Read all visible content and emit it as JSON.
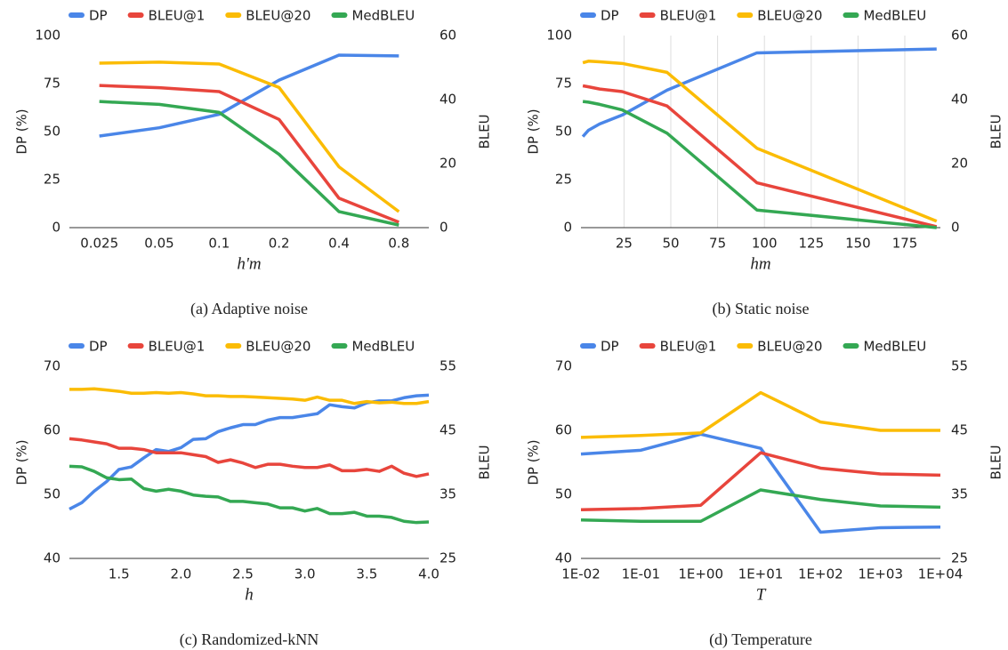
{
  "chart_data": [
    {
      "type": "line",
      "caption": "(a) Adaptive noise",
      "x_label": "h'm",
      "y_label": "DP (%)",
      "y2_label": "BLEU",
      "categories": [
        "0.025",
        "0.05",
        "0.1",
        "0.2",
        "0.4",
        "0.8"
      ],
      "ylim": [
        0,
        100
      ],
      "yticks": [
        0,
        25,
        50,
        75,
        100
      ],
      "y2lim": [
        0,
        60
      ],
      "y2ticks": [
        0,
        20,
        40,
        60
      ],
      "legend": "top",
      "series": [
        {
          "name": "DP",
          "color": "#4a86e8",
          "axis": "y",
          "values": [
            47.7,
            52,
            59,
            76.8,
            89.8,
            89.4
          ]
        },
        {
          "name": "BLEU@1",
          "color": "#e8453c",
          "axis": "y2",
          "values": [
            44.4,
            43.7,
            42.5,
            33.8,
            9.2,
            1.7
          ]
        },
        {
          "name": "BLEU@20",
          "color": "#fbbc04",
          "axis": "y2",
          "values": [
            51.4,
            51.7,
            51.1,
            43.8,
            19,
            5
          ]
        },
        {
          "name": "MedBLEU",
          "color": "#34a853",
          "axis": "y2",
          "values": [
            39.4,
            38.5,
            36,
            22.9,
            5,
            0.8
          ]
        }
      ]
    },
    {
      "type": "line",
      "caption": "(b) Static noise",
      "x_label": "hm",
      "y_label": "DP (%)",
      "y2_label": "BLEU",
      "x": [
        3,
        6,
        12,
        24,
        48,
        96,
        192
      ],
      "xlim": [
        2,
        194
      ],
      "xticks": [
        25,
        50,
        75,
        100,
        125,
        150,
        175
      ],
      "xgrid": true,
      "ylim": [
        0,
        100
      ],
      "yticks": [
        0,
        25,
        50,
        75,
        100
      ],
      "y2lim": [
        0,
        60
      ],
      "y2ticks": [
        0,
        20,
        40,
        60
      ],
      "legend": "top",
      "series": [
        {
          "name": "DP",
          "color": "#4a86e8",
          "axis": "y",
          "values": [
            47.4,
            50.7,
            54,
            58.6,
            71.6,
            91,
            93
          ]
        },
        {
          "name": "BLEU@1",
          "color": "#e8453c",
          "axis": "y2",
          "values": [
            44.3,
            44,
            43.3,
            42.5,
            38,
            14,
            0.3
          ]
        },
        {
          "name": "BLEU@20",
          "color": "#fbbc04",
          "axis": "y2",
          "values": [
            51.5,
            52,
            51.8,
            51.3,
            48.5,
            24.8,
            2
          ]
        },
        {
          "name": "MedBLEU",
          "color": "#34a853",
          "axis": "y2",
          "values": [
            39.4,
            39.2,
            38.5,
            36.8,
            29.5,
            5.5,
            0
          ]
        }
      ]
    },
    {
      "type": "line",
      "caption": "(c) Randomized-kNN",
      "x_label": "h",
      "y_label": "DP (%)",
      "y2_label": "BLEU",
      "x": [
        1.1,
        1.2,
        1.3,
        1.4,
        1.5,
        1.6,
        1.7,
        1.8,
        1.9,
        2.0,
        2.1,
        2.2,
        2.3,
        2.4,
        2.5,
        2.6,
        2.7,
        2.8,
        2.9,
        3.0,
        3.1,
        3.2,
        3.3,
        3.4,
        3.5,
        3.6,
        3.7,
        3.8,
        3.9,
        4.0
      ],
      "xlim": [
        1.1,
        4.0
      ],
      "xticks": [
        1.5,
        {
          "value": 2,
          "label": "2.0"
        },
        2.5,
        {
          "value": 3,
          "label": "3.0"
        },
        3.5,
        {
          "value": 4,
          "label": "4.0"
        }
      ],
      "ylim": [
        40,
        70
      ],
      "yticks": [
        40,
        50,
        60,
        70
      ],
      "y2lim": [
        25,
        55
      ],
      "y2ticks": [
        25,
        35,
        45,
        55
      ],
      "legend": "top",
      "series": [
        {
          "name": "DP",
          "color": "#4a86e8",
          "axis": "y",
          "values": [
            47.7,
            48.7,
            50.5,
            52,
            53.9,
            54.3,
            55.7,
            57,
            56.7,
            57.3,
            58.6,
            58.7,
            59.8,
            60.4,
            60.9,
            60.9,
            61.6,
            62,
            62,
            62.3,
            62.6,
            64,
            63.7,
            63.5,
            64.3,
            64.6,
            64.6,
            65.1,
            65.4,
            65.5
          ]
        },
        {
          "name": "BLEU@1",
          "color": "#e8453c",
          "axis": "y2",
          "values": [
            43.7,
            43.5,
            43.2,
            42.9,
            42.2,
            42.2,
            42,
            41.5,
            41.5,
            41.5,
            41.2,
            40.9,
            40,
            40.4,
            39.9,
            39.2,
            39.7,
            39.7,
            39.4,
            39.2,
            39.2,
            39.6,
            38.7,
            38.7,
            38.9,
            38.6,
            39.4,
            38.3,
            37.8,
            38.2
          ]
        },
        {
          "name": "BLEU@20",
          "color": "#fbbc04",
          "axis": "y2",
          "values": [
            51.4,
            51.4,
            51.5,
            51.3,
            51.1,
            50.8,
            50.8,
            50.9,
            50.8,
            50.9,
            50.7,
            50.4,
            50.4,
            50.3,
            50.3,
            50.2,
            50.1,
            50,
            49.9,
            49.7,
            50.2,
            49.7,
            49.7,
            49.2,
            49.5,
            49.3,
            49.4,
            49.2,
            49.2,
            49.5
          ]
        },
        {
          "name": "MedBLEU",
          "color": "#34a853",
          "axis": "y2",
          "values": [
            39.4,
            39.3,
            38.6,
            37.6,
            37.3,
            37.4,
            35.9,
            35.5,
            35.8,
            35.5,
            34.9,
            34.7,
            34.6,
            33.9,
            33.9,
            33.7,
            33.5,
            32.9,
            32.9,
            32.4,
            32.8,
            32,
            32,
            32.2,
            31.6,
            31.6,
            31.4,
            30.8,
            30.6,
            30.7
          ]
        }
      ]
    },
    {
      "type": "line",
      "caption": "(d) Temperature",
      "x_label": "T",
      "y_label": "DP (%)",
      "y2_label": "BLEU",
      "categories": [
        "1E-02",
        "1E-01",
        "1E+00",
        "1E+01",
        "1E+02",
        "1E+03",
        "1E+04"
      ],
      "ylim": [
        40,
        70
      ],
      "yticks": [
        40,
        50,
        60,
        70
      ],
      "y2lim": [
        25,
        55
      ],
      "y2ticks": [
        25,
        35,
        45,
        55
      ],
      "legend": "top",
      "series": [
        {
          "name": "DP",
          "color": "#4a86e8",
          "axis": "y",
          "values": [
            56.3,
            56.9,
            59.4,
            57.2,
            44.1,
            44.8,
            44.9
          ]
        },
        {
          "name": "BLEU@1",
          "color": "#e8453c",
          "axis": "y2",
          "values": [
            32.6,
            32.8,
            33.3,
            41.5,
            39.1,
            38.2,
            38
          ]
        },
        {
          "name": "BLEU@20",
          "color": "#fbbc04",
          "axis": "y2",
          "values": [
            43.9,
            44.2,
            44.6,
            50.9,
            46.3,
            45,
            45
          ]
        },
        {
          "name": "MedBLEU",
          "color": "#34a853",
          "axis": "y2",
          "values": [
            31,
            30.8,
            30.8,
            35.7,
            34.2,
            33.2,
            33
          ]
        }
      ]
    }
  ]
}
